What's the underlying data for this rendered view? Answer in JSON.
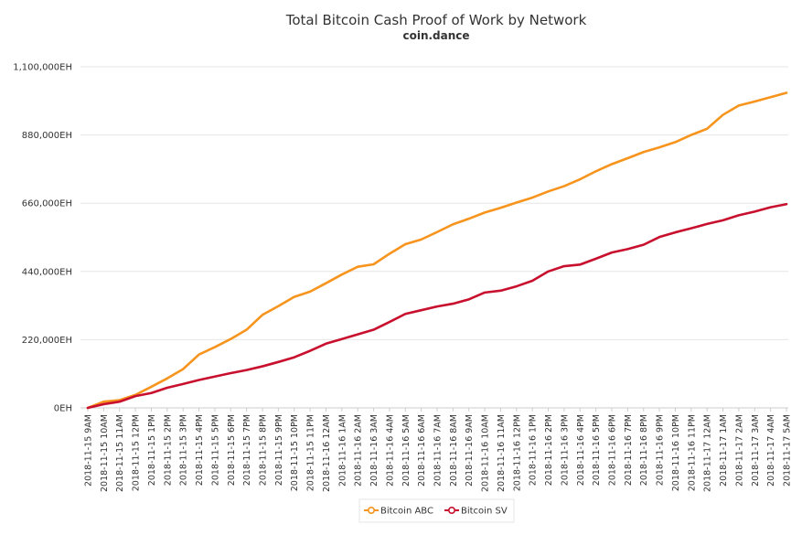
{
  "chart_data": {
    "type": "line",
    "title": "Total Bitcoin Cash Proof of Work by Network",
    "subtitle": "coin.dance",
    "xlabel": "",
    "ylabel": "",
    "ylim": [
      0,
      1100000
    ],
    "y_ticks": [
      "0EH",
      "220,000EH",
      "440,000EH",
      "660,000EH",
      "880,000EH",
      "1,100,000EH"
    ],
    "y_tick_values": [
      0,
      220000,
      440000,
      660000,
      880000,
      1100000
    ],
    "grid": true,
    "legend_placement": "bottom-center",
    "categories": [
      "2018-11-15 9AM",
      "2018-11-15 10AM",
      "2018-11-15 11AM",
      "2018-11-15 12PM",
      "2018-11-15 1PM",
      "2018-11-15 2PM",
      "2018-11-15 3PM",
      "2018-11-15 4PM",
      "2018-11-15 5PM",
      "2018-11-15 6PM",
      "2018-11-15 7PM",
      "2018-11-15 8PM",
      "2018-11-15 9PM",
      "2018-11-15 10PM",
      "2018-11-15 11PM",
      "2018-11-16 12AM",
      "2018-11-16 1AM",
      "2018-11-16 2AM",
      "2018-11-16 3AM",
      "2018-11-16 4AM",
      "2018-11-16 5AM",
      "2018-11-16 6AM",
      "2018-11-16 7AM",
      "2018-11-16 8AM",
      "2018-11-16 9AM",
      "2018-11-16 10AM",
      "2018-11-16 11AM",
      "2018-11-16 12PM",
      "2018-11-16 1PM",
      "2018-11-16 2PM",
      "2018-11-16 3PM",
      "2018-11-16 4PM",
      "2018-11-16 5PM",
      "2018-11-16 6PM",
      "2018-11-16 7PM",
      "2018-11-16 8PM",
      "2018-11-16 9PM",
      "2018-11-16 10PM",
      "2018-11-16 11PM",
      "2018-11-17 12AM",
      "2018-11-17 1AM",
      "2018-11-17 2AM",
      "2018-11-17 3AM",
      "2018-11-17 4AM",
      "2018-11-17 5AM"
    ],
    "series": [
      {
        "name": "Bitcoin ABC",
        "color": "#f7941d",
        "values": [
          0,
          20000,
          25000,
          42000,
          68000,
          95000,
          125000,
          172000,
          196000,
          222000,
          252000,
          300000,
          328000,
          358000,
          375000,
          402000,
          430000,
          455000,
          463000,
          497000,
          528000,
          543000,
          567000,
          592000,
          610000,
          630000,
          645000,
          662000,
          678000,
          698000,
          715000,
          737000,
          763000,
          786000,
          805000,
          825000,
          840000,
          857000,
          880000,
          900000,
          945000,
          975000,
          988000,
          1002000,
          1016000
        ]
      },
      {
        "name": "Bitcoin SV",
        "color": "#c8102e",
        "values": [
          0,
          12000,
          20000,
          38000,
          48000,
          65000,
          77000,
          90000,
          101000,
          112000,
          122000,
          134000,
          148000,
          163000,
          184000,
          207000,
          222000,
          237000,
          252000,
          277000,
          303000,
          315000,
          327000,
          336000,
          350000,
          372000,
          378000,
          392000,
          410000,
          440000,
          457000,
          462000,
          481000,
          501000,
          512000,
          526000,
          551000,
          566000,
          579000,
          593000,
          605000,
          621000,
          633000,
          647000,
          657000
        ]
      }
    ]
  }
}
